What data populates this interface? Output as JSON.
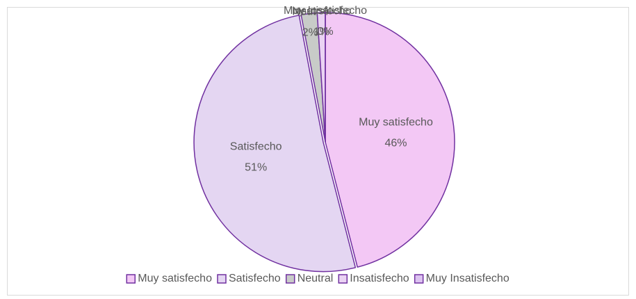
{
  "chart_data": {
    "type": "pie",
    "categories": [
      "Muy satisfecho",
      "Satisfecho",
      "Neutral",
      "Insatisfecho",
      "Muy Insatisfecho"
    ],
    "values": [
      46,
      51,
      2,
      1,
      0
    ],
    "value_labels": [
      "46%",
      "51%",
      "2%",
      "1%",
      "0%"
    ],
    "colors": [
      "#f3c8f5",
      "#e4d6f2",
      "#c8cbc8",
      "#ead3f3",
      "#dcc3f0"
    ],
    "edge_color": "#7030a0",
    "legend": "bottom"
  }
}
